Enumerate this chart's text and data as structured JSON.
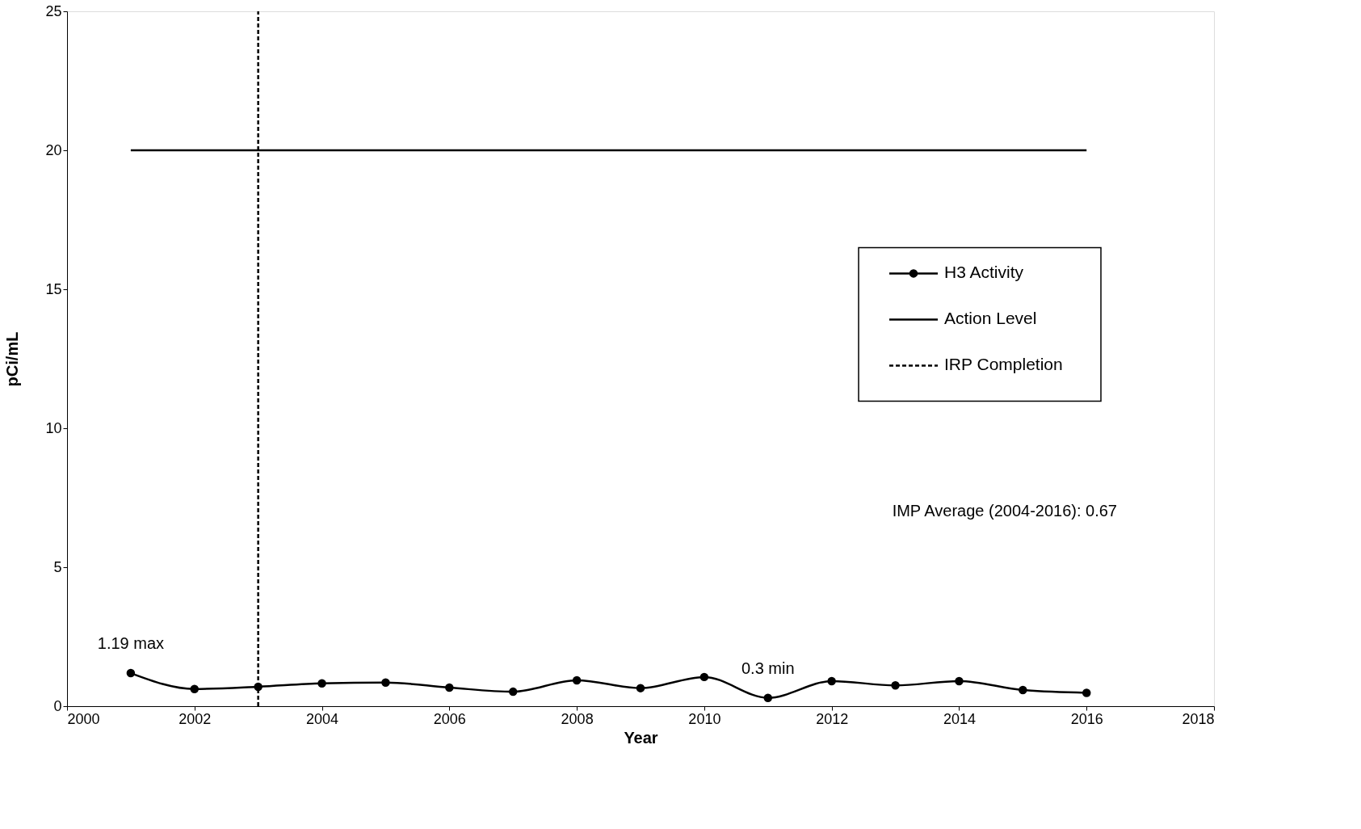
{
  "chart_data": {
    "type": "line",
    "xlabel": "Year",
    "ylabel": "pCi/mL",
    "series": [
      {
        "name": "H3 Activity",
        "color": "#000000",
        "marker": "circle",
        "x": [
          2001,
          2002,
          2003,
          2004,
          2005,
          2006,
          2007,
          2008,
          2009,
          2010,
          2011,
          2012,
          2013,
          2014,
          2015,
          2016
        ],
        "values": [
          1.19,
          0.62,
          0.7,
          0.82,
          0.85,
          0.67,
          0.52,
          0.93,
          0.65,
          1.05,
          0.3,
          0.9,
          0.75,
          0.9,
          0.58,
          0.48
        ]
      },
      {
        "name": "Action Level",
        "color": "#000000",
        "marker": "none",
        "x": [
          2001,
          2016
        ],
        "values": [
          20,
          20
        ]
      },
      {
        "name": "IRP Completion",
        "color": "#000000",
        "marker": "none",
        "line_style": "dashed",
        "x": [
          2003,
          2003
        ],
        "values": [
          0,
          25
        ]
      }
    ],
    "annotations": [
      {
        "text": "1.19 max",
        "x": 2001,
        "y": 1.19
      },
      {
        "text": "0.3 min",
        "x": 2011,
        "y": 0.3
      },
      "IMP Average (2004-2016): 0.67"
    ],
    "xlim": [
      2000,
      2018
    ],
    "xticks": [
      2000,
      2002,
      2004,
      2006,
      2008,
      2010,
      2012,
      2014,
      2016,
      2018
    ],
    "ylim": [
      0,
      25
    ],
    "yticks": [
      0,
      5,
      10,
      15,
      20,
      25
    ],
    "grid": false,
    "legend": "right",
    "line_style": "solid"
  }
}
